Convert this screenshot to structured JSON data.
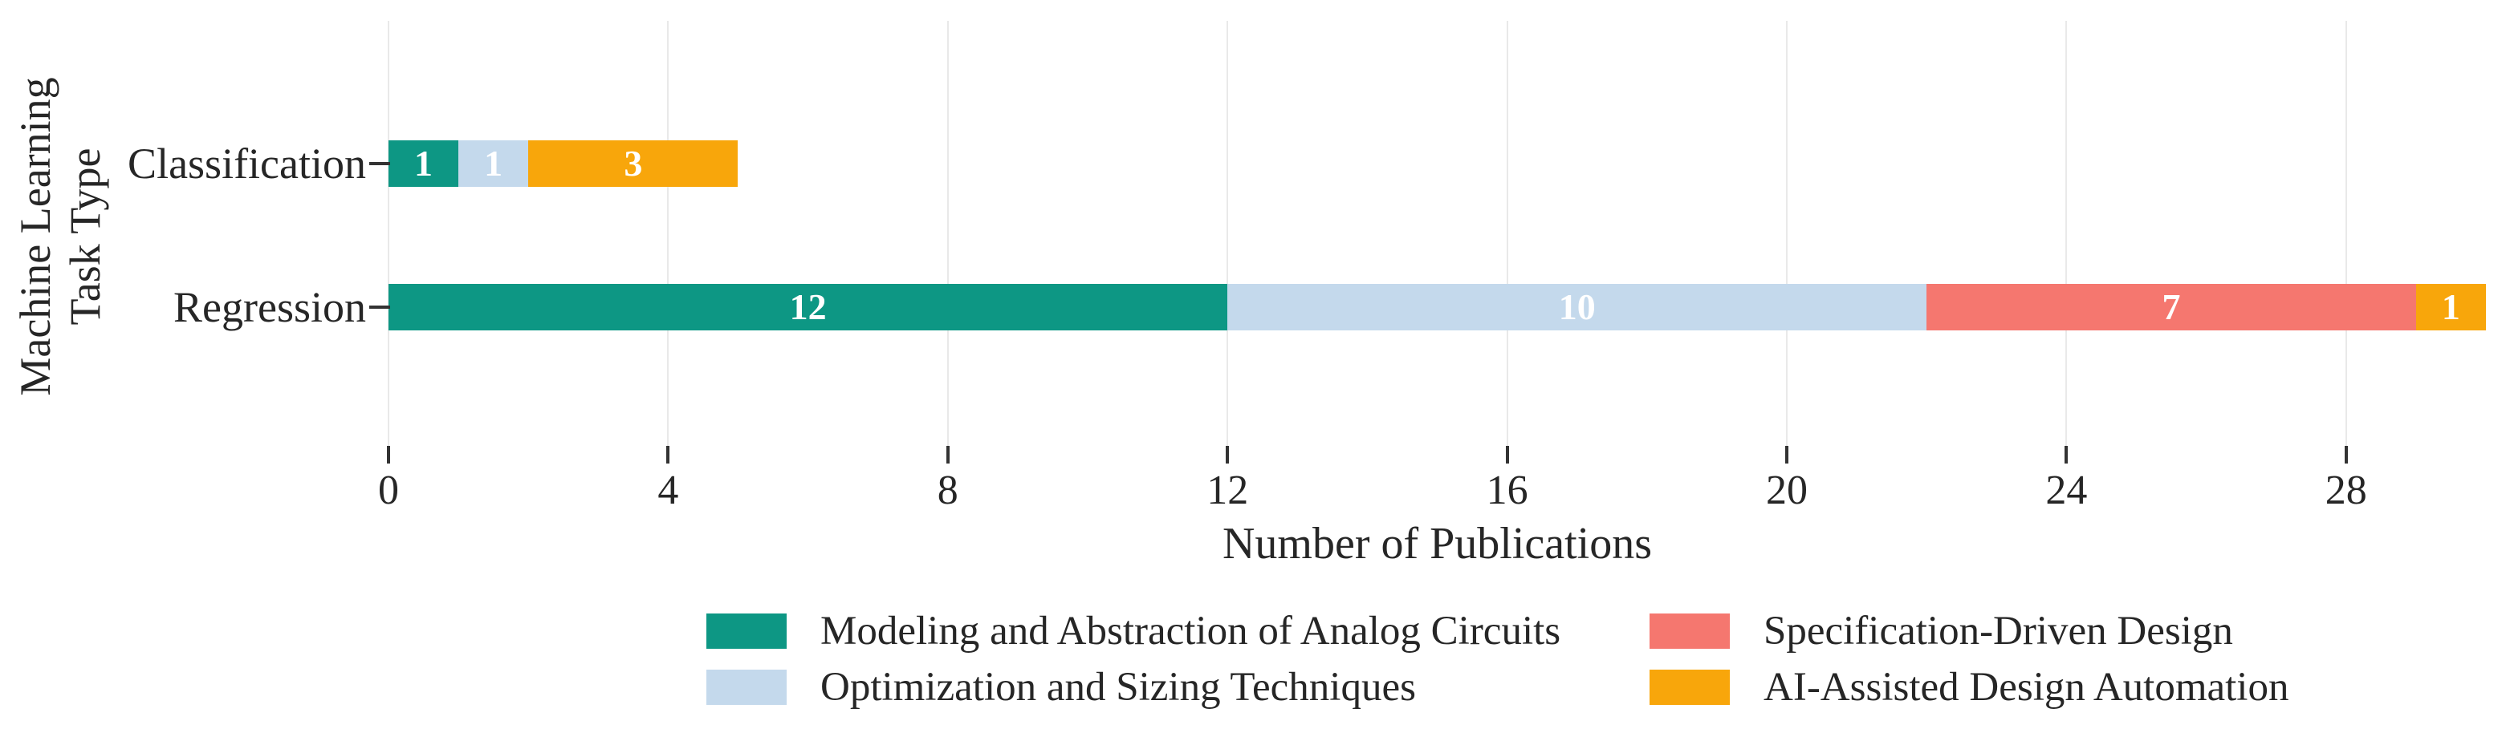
{
  "figure": {
    "x_axis_title": "Number of Publications",
    "y_axis_title_line1": "Machine Learning",
    "y_axis_title_line2": "Task Type"
  },
  "chart_data": {
    "type": "bar",
    "orientation": "horizontal",
    "stacked": true,
    "title": "",
    "xlabel": "Number of Publications",
    "ylabel": "Machine Learning Task Type",
    "categories": [
      "Classification",
      "Regression"
    ],
    "series": [
      {
        "name": "Modeling and Abstraction of Analog Circuits",
        "color": "#0d9784",
        "values": [
          1,
          12
        ]
      },
      {
        "name": "Optimization and Sizing Techniques",
        "color": "#c4d9ec",
        "values": [
          1,
          10
        ]
      },
      {
        "name": "Specification-Driven Design",
        "color": "#f5776f",
        "values": [
          0,
          7
        ]
      },
      {
        "name": "AI-Assisted Design Automation",
        "color": "#f8a60b",
        "values": [
          3,
          1
        ]
      }
    ],
    "bar_value_labels": {
      "Classification": [
        1,
        1,
        3
      ],
      "Regression": [
        12,
        10,
        7,
        1
      ]
    },
    "xlim": [
      0,
      30
    ],
    "xticks": [
      0,
      4,
      8,
      12,
      16,
      20,
      24,
      28
    ],
    "grid": "vertical-gridlines-only",
    "legend_position": "bottom-two-columns",
    "value_label_color": "#ffffff"
  },
  "colors": {
    "gridline": "#e9e9e9",
    "tick": "#333333",
    "text": "#262626"
  }
}
